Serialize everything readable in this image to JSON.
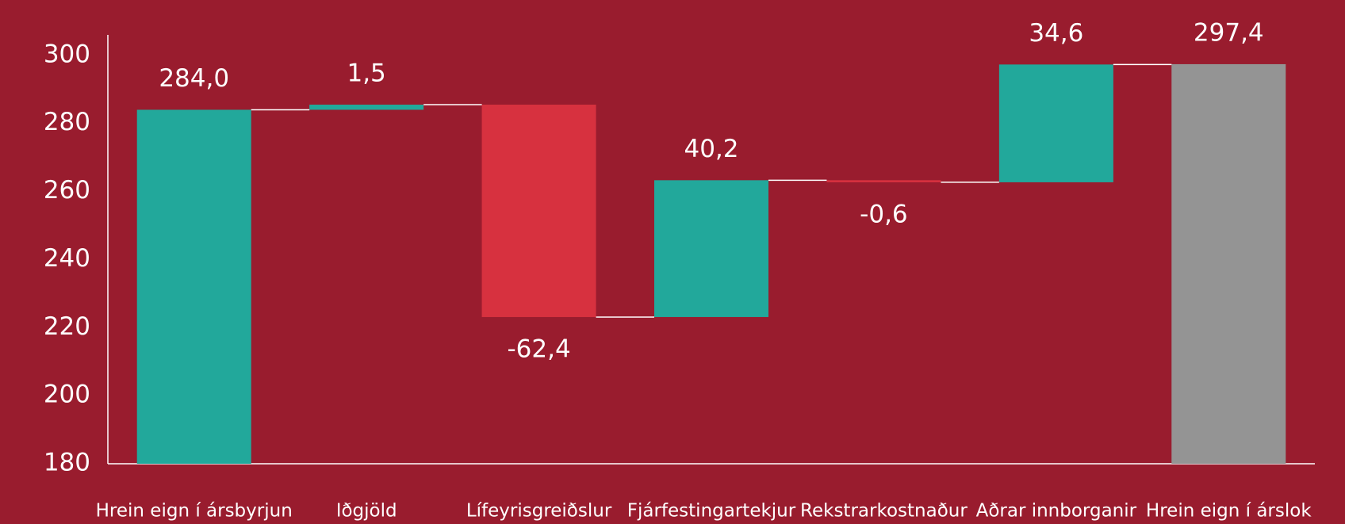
{
  "chart_data": {
    "type": "waterfall",
    "categories": [
      "Hrein eign í ársbyrjun",
      "Iðgjöld",
      "Lífeyrisgreiðslur",
      "Fjárfestingartekjur",
      "Rekstrarkostnaður",
      "Aðrar innborganir",
      "Hrein eign í árslok"
    ],
    "values": [
      284.0,
      1.5,
      -62.4,
      40.2,
      -0.6,
      34.6,
      297.4
    ],
    "value_labels": [
      "284,0",
      "1,5",
      "-62,4",
      "40,2",
      "-0,6",
      "34,6",
      "297,4"
    ],
    "measure": [
      "absolute",
      "relative",
      "relative",
      "relative",
      "relative",
      "relative",
      "total"
    ],
    "colors": {
      "increase": "#22a89b",
      "decrease": "#d7313f",
      "total": "#949494"
    },
    "ylim": [
      180,
      306
    ],
    "yticks": [
      180,
      200,
      220,
      240,
      260,
      280,
      300
    ],
    "grid": false
  }
}
